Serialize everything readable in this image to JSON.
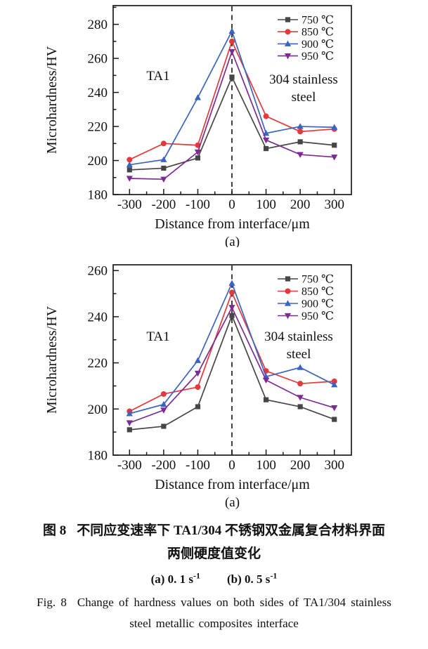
{
  "figure": {
    "caption_cn_fig": "图 8",
    "caption_cn_rest": "不同应变速率下 TA1/304 不锈钢双金属复合材料界面",
    "caption_cn_line2": "两侧硬度值变化",
    "subcaption": {
      "a": "(a) 0. 1 s",
      "a_sup": "-1",
      "b": "(b) 0. 5 s",
      "b_sup": "-1"
    },
    "caption_en_fig": "Fig. 8",
    "caption_en_rest": "Change of hardness values on both sides of TA1/304 stainless",
    "caption_en_line2": "steel metallic composites interface"
  },
  "chart_data": [
    {
      "type": "line",
      "panel_label": "(a)",
      "title": "",
      "xlabel": "Distance from interface/μm",
      "ylabel": "Microhardness/HV",
      "x": [
        -300,
        -200,
        -100,
        0,
        100,
        200,
        300
      ],
      "xticks": [
        -300,
        -200,
        -100,
        0,
        100,
        200,
        300
      ],
      "yticks": [
        180,
        200,
        220,
        240,
        260,
        280
      ],
      "xlim": [
        -348,
        350
      ],
      "ylim": [
        180,
        291
      ],
      "grid": false,
      "legend_position": "top-right",
      "dashed_line_x": 0,
      "region_label_left": "TA1",
      "region_label_right_line1": "304 stainless",
      "region_label_right_line2": "steel",
      "series": [
        {
          "name": "750 ℃",
          "marker": "square",
          "color": "#464646",
          "values": [
            194.5,
            195.5,
            201.5,
            249,
            207,
            211,
            209
          ]
        },
        {
          "name": "850 ℃",
          "marker": "circle",
          "color": "#e2393c",
          "values": [
            200.5,
            210,
            209,
            270,
            226,
            217,
            218.5
          ]
        },
        {
          "name": "900 ℃",
          "marker": "triangle-up",
          "color": "#3a64c0",
          "values": [
            197.5,
            200.5,
            237,
            276,
            216,
            220,
            219.5
          ]
        },
        {
          "name": "950 ℃",
          "marker": "triangle-down",
          "color": "#7c2b90",
          "values": [
            189.5,
            189,
            205,
            264,
            212,
            203.5,
            202
          ]
        }
      ]
    },
    {
      "type": "line",
      "panel_label": "(a)",
      "title": "",
      "xlabel": "Distance from interface/μm",
      "ylabel": "Microhardness/HV",
      "x": [
        -300,
        -200,
        -100,
        0,
        100,
        200,
        300
      ],
      "xticks": [
        -300,
        -200,
        -100,
        0,
        100,
        200,
        300
      ],
      "yticks": [
        180,
        200,
        220,
        240,
        260
      ],
      "xlim": [
        -348,
        350
      ],
      "ylim": [
        180,
        262.5
      ],
      "grid": false,
      "legend_position": "top-right",
      "dashed_line_x": 0,
      "region_label_left": "TA1",
      "region_label_right_line1": "304 stainless",
      "region_label_right_line2": "steel",
      "series": [
        {
          "name": "750 ℃",
          "marker": "square",
          "color": "#464646",
          "values": [
            191,
            192.5,
            201,
            240.5,
            204,
            201,
            195.5
          ]
        },
        {
          "name": "850 ℃",
          "marker": "circle",
          "color": "#e2393c",
          "values": [
            199,
            206.5,
            209.5,
            250.5,
            216.5,
            211,
            212
          ]
        },
        {
          "name": "900 ℃",
          "marker": "triangle-up",
          "color": "#3a64c0",
          "values": [
            198,
            202,
            221,
            254.5,
            214,
            218,
            210.5
          ]
        },
        {
          "name": "950 ℃",
          "marker": "triangle-down",
          "color": "#7c2b90",
          "values": [
            194,
            199.5,
            215.5,
            244,
            212.5,
            205,
            200.5
          ]
        }
      ]
    }
  ]
}
